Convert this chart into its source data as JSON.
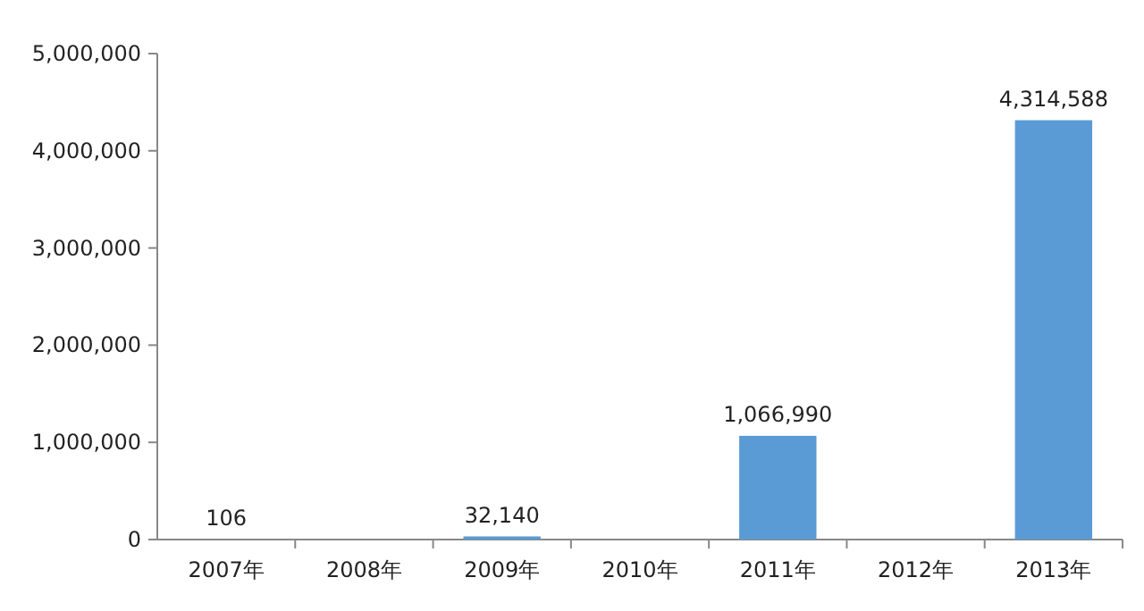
{
  "chart_data": {
    "type": "bar",
    "categories": [
      "2007年",
      "2008年",
      "2009年",
      "2010年",
      "2011年",
      "2012年",
      "2013年"
    ],
    "values": [
      106,
      null,
      32140,
      null,
      1066990,
      null,
      4314588
    ],
    "value_labels": [
      "106",
      null,
      "32,140",
      null,
      "1,066,990",
      null,
      "4,314,588"
    ],
    "color": "#5b9bd5",
    "ylim": [
      0,
      5000000
    ],
    "yticks": [
      {
        "value": 0,
        "label": "0"
      },
      {
        "value": 1000000,
        "label": "1,000,000"
      },
      {
        "value": 2000000,
        "label": "2,000,000"
      },
      {
        "value": 3000000,
        "label": "3,000,000"
      },
      {
        "value": 4000000,
        "label": "4,000,000"
      },
      {
        "value": 5000000,
        "label": "5,000,000"
      }
    ],
    "grid": false
  }
}
